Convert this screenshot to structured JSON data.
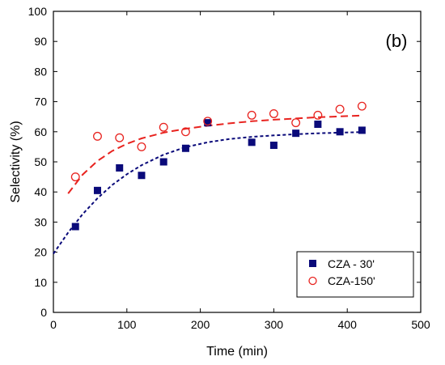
{
  "chart_data": {
    "type": "scatter",
    "panel_label": "(b)",
    "xlabel": "Time (min)",
    "ylabel": "Selectivity (%)",
    "xlim": [
      0,
      500
    ],
    "ylim": [
      0,
      100
    ],
    "xticks": [
      0,
      100,
      200,
      300,
      400,
      500
    ],
    "yticks": [
      0,
      10,
      20,
      30,
      40,
      50,
      60,
      70,
      80,
      90,
      100
    ],
    "grid": false,
    "legend_position": "bottom-right",
    "series": [
      {
        "name": "CZA - 30'",
        "marker": "filled-square",
        "color": "#0a0a7a",
        "points": [
          [
            30,
            28.5
          ],
          [
            60,
            40.5
          ],
          [
            90,
            48
          ],
          [
            120,
            45.5
          ],
          [
            150,
            50
          ],
          [
            180,
            54.5
          ],
          [
            210,
            63
          ],
          [
            270,
            56.5
          ],
          [
            300,
            55.5
          ],
          [
            330,
            59.5
          ],
          [
            360,
            62.5
          ],
          [
            390,
            60
          ],
          [
            420,
            60.5
          ]
        ],
        "fit": {
          "style": "short-dash",
          "color": "#0a0a7a",
          "points": [
            [
              0,
              19.5
            ],
            [
              20,
              26.5
            ],
            [
              40,
              32.7
            ],
            [
              60,
              37.9
            ],
            [
              80,
              42.3
            ],
            [
              100,
              45.9
            ],
            [
              120,
              48.9
            ],
            [
              150,
              52.4
            ],
            [
              180,
              54.9
            ],
            [
              210,
              56.5
            ],
            [
              240,
              57.6
            ],
            [
              270,
              58.3
            ],
            [
              300,
              58.8
            ],
            [
              330,
              59.2
            ],
            [
              360,
              59.5
            ],
            [
              390,
              59.7
            ],
            [
              420,
              59.9
            ]
          ]
        }
      },
      {
        "name": "CZA-150'",
        "marker": "open-circle",
        "color": "#e8231f",
        "points": [
          [
            30,
            45
          ],
          [
            60,
            58.5
          ],
          [
            90,
            58
          ],
          [
            120,
            55
          ],
          [
            150,
            61.5
          ],
          [
            180,
            60
          ],
          [
            210,
            63.5
          ],
          [
            270,
            65.5
          ],
          [
            300,
            66
          ],
          [
            330,
            63
          ],
          [
            360,
            65.5
          ],
          [
            390,
            67.5
          ],
          [
            420,
            68.5
          ]
        ],
        "fit": {
          "style": "long-dash",
          "color": "#e8231f",
          "points": [
            [
              20,
              39.5
            ],
            [
              40,
              45.8
            ],
            [
              60,
              50.3
            ],
            [
              80,
              53.6
            ],
            [
              100,
              56
            ],
            [
              120,
              57.8
            ],
            [
              150,
              59.7
            ],
            [
              180,
              61
            ],
            [
              210,
              62
            ],
            [
              240,
              62.8
            ],
            [
              270,
              63.5
            ],
            [
              300,
              64
            ],
            [
              330,
              64.4
            ],
            [
              360,
              64.8
            ],
            [
              390,
              65.1
            ],
            [
              420,
              65.4
            ]
          ]
        }
      }
    ]
  }
}
